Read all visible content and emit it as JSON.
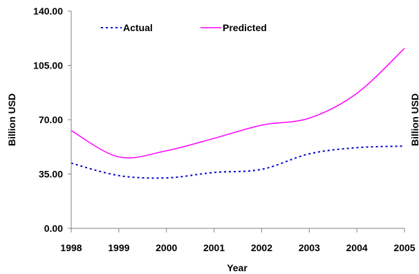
{
  "chart_data": {
    "type": "line",
    "x": [
      1998,
      1999,
      2000,
      2001,
      2002,
      2003,
      2004,
      2005
    ],
    "x_tick_labels": [
      "1998",
      "1999",
      "2000",
      "2001",
      "2002",
      "2003",
      "2004",
      "2005"
    ],
    "y_tick_labels": [
      "0.00",
      "35.00",
      "70.00",
      "105.00",
      "140.00"
    ],
    "y_ticks": [
      0,
      35,
      70,
      105,
      140
    ],
    "ylim": [
      0,
      140
    ],
    "xlim": [
      1998,
      2005
    ],
    "xlabel": "Year",
    "ylabel": "Billion USD",
    "ylabel_right": "Billion USD",
    "legend_position": "top-left",
    "grid": false,
    "series": [
      {
        "name": "Actual",
        "style": "dashed",
        "color": "#0000CC",
        "values": [
          42.0,
          34.0,
          32.5,
          36.0,
          38.0,
          48.0,
          52.0,
          53.0
        ]
      },
      {
        "name": "Predicted",
        "style": "solid",
        "color": "#FF00FF",
        "values": [
          63.0,
          46.0,
          50.0,
          58.0,
          66.5,
          71.0,
          87.0,
          116.0
        ]
      }
    ]
  }
}
